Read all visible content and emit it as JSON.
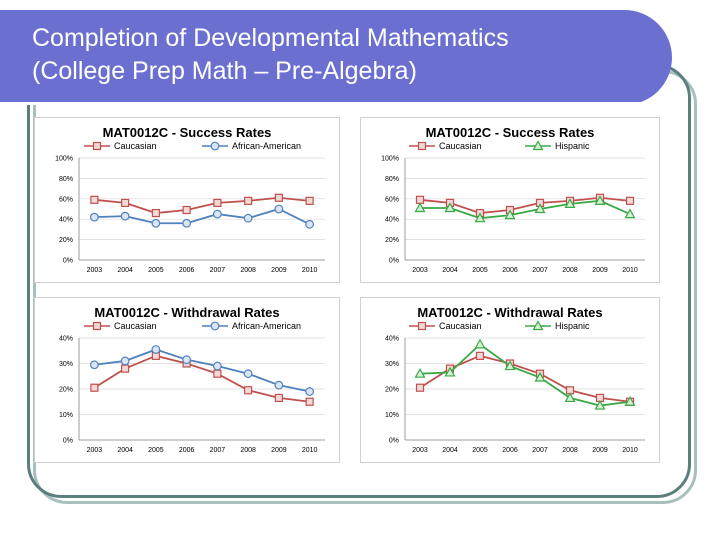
{
  "slide": {
    "title_line1": "Completion of Developmental Mathematics",
    "title_line2": "(College Prep Math – Pre-Algebra)"
  },
  "colors": {
    "banner": "#6b6fd0",
    "caucasian": "#c0504d",
    "african_american": "#4f81bd",
    "hispanic": "#3aa845"
  },
  "chart_data": [
    {
      "type": "line",
      "title": "MAT0012C - Success Rates",
      "categories": [
        "2003",
        "2004",
        "2005",
        "2006",
        "2007",
        "2008",
        "2009",
        "2010"
      ],
      "y_ticks": [
        "0%",
        "20%",
        "40%",
        "60%",
        "80%",
        "100%"
      ],
      "ylim": [
        0,
        100
      ],
      "series": [
        {
          "name": "Caucasian",
          "color": "#c0504d",
          "marker": "square",
          "values": [
            59,
            56,
            46,
            49,
            56,
            58,
            61,
            58
          ]
        },
        {
          "name": "African-American",
          "color": "#4f81bd",
          "marker": "circle",
          "values": [
            42,
            43,
            36,
            36,
            45,
            41,
            50,
            35
          ]
        }
      ]
    },
    {
      "type": "line",
      "title": "MAT0012C - Success Rates",
      "categories": [
        "2003",
        "2004",
        "2005",
        "2006",
        "2007",
        "2008",
        "2009",
        "2010"
      ],
      "y_ticks": [
        "0%",
        "20%",
        "40%",
        "60%",
        "80%",
        "100%"
      ],
      "ylim": [
        0,
        100
      ],
      "series": [
        {
          "name": "Caucasian",
          "color": "#c0504d",
          "marker": "square",
          "values": [
            59,
            56,
            46,
            49,
            56,
            58,
            61,
            58
          ]
        },
        {
          "name": "Hispanic",
          "color": "#3aa845",
          "marker": "triangle",
          "values": [
            51,
            51,
            41,
            44,
            50,
            55,
            58,
            45
          ]
        }
      ]
    },
    {
      "type": "line",
      "title": "MAT0012C - Withdrawal Rates",
      "categories": [
        "2003",
        "2004",
        "2005",
        "2006",
        "2007",
        "2008",
        "2009",
        "2010"
      ],
      "y_ticks": [
        "0%",
        "10%",
        "20%",
        "30%",
        "40%"
      ],
      "ylim": [
        0,
        40
      ],
      "series": [
        {
          "name": "Caucasian",
          "color": "#c0504d",
          "marker": "square",
          "values": [
            20.5,
            28,
            33,
            30,
            26,
            19.5,
            16.5,
            15
          ]
        },
        {
          "name": "African-American",
          "color": "#4f81bd",
          "marker": "circle",
          "values": [
            29.5,
            31,
            35.5,
            31.5,
            29,
            26,
            21.5,
            19
          ]
        }
      ]
    },
    {
      "type": "line",
      "title": "MAT0012C - Withdrawal Rates",
      "categories": [
        "2003",
        "2004",
        "2005",
        "2006",
        "2007",
        "2008",
        "2009",
        "2010"
      ],
      "y_ticks": [
        "0%",
        "10%",
        "20%",
        "30%",
        "40%"
      ],
      "ylim": [
        0,
        40
      ],
      "series": [
        {
          "name": "Caucasian",
          "color": "#c0504d",
          "marker": "square",
          "values": [
            20.5,
            28,
            33,
            30,
            26,
            19.5,
            16.5,
            15
          ]
        },
        {
          "name": "Hispanic",
          "color": "#3aa845",
          "marker": "triangle",
          "values": [
            26,
            26.5,
            37.5,
            29,
            24.5,
            16.5,
            13.5,
            15
          ]
        }
      ]
    }
  ]
}
